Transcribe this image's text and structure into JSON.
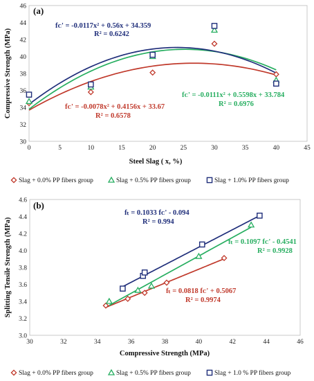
{
  "chart_data": [
    {
      "type": "scatter",
      "panel_label": "(a)",
      "xlabel": "Steel Slag ( x, %)",
      "ylabel": "Compressive Strength (MPa)",
      "xlim": [
        0,
        45
      ],
      "ylim": [
        30,
        46
      ],
      "xticks": [
        0,
        5,
        10,
        15,
        20,
        25,
        30,
        35,
        40,
        45
      ],
      "yticks": [
        30,
        32,
        34,
        36,
        38,
        40,
        42,
        44,
        46
      ],
      "grid": false,
      "legend_position": "bottom",
      "series": [
        {
          "name": "Slag + 0.0% PP fibers group",
          "color": "#c0392b",
          "marker": "diamond",
          "x": [
            0,
            10,
            20,
            30,
            40
          ],
          "y": [
            34.5,
            35.8,
            38.1,
            41.5,
            37.9
          ],
          "fit": {
            "degree": 2,
            "coef": [
              -0.0078,
              0.4156,
              33.67
            ]
          },
          "equation": "fᴄ' = -0.0078x² + 0.4156x + 33.67",
          "r2": "R² = 0.6578"
        },
        {
          "name": "Slag + 0.5% PP fibers group",
          "color": "#27ae60",
          "marker": "triangle",
          "x": [
            0,
            10,
            20,
            30,
            40
          ],
          "y": [
            34.7,
            36.4,
            40.0,
            43.1,
            37.2
          ],
          "fit": {
            "degree": 2,
            "coef": [
              -0.0111,
              0.5598,
              33.784
            ]
          },
          "equation": "fᴄ' = -0.0111x² + 0.5598x + 33.784",
          "r2": "R² = 0.6976"
        },
        {
          "name": "Slag + 1.0% PP fibers group",
          "color": "#1f2e7a",
          "marker": "square",
          "x": [
            0,
            10,
            20,
            30,
            40
          ],
          "y": [
            35.5,
            36.7,
            40.2,
            43.6,
            36.8
          ],
          "fit": {
            "degree": 2,
            "coef": [
              -0.0117,
              0.56,
              34.359
            ]
          },
          "equation": "fᴄ' = -0.0117x² + 0.56x + 34.359",
          "r2": "R² = 0.6242"
        }
      ]
    },
    {
      "type": "scatter",
      "panel_label": "(b)",
      "xlabel": "Compressive Strength (MPa)",
      "ylabel": "Splitting Tensile Strength (MPa)",
      "xlim": [
        30,
        46
      ],
      "ylim": [
        3.0,
        4.6
      ],
      "xticks": [
        30,
        32,
        34,
        36,
        38,
        40,
        42,
        44,
        46
      ],
      "yticks": [
        3.0,
        3.2,
        3.4,
        3.6,
        3.8,
        4.0,
        4.2,
        4.4,
        4.6
      ],
      "grid": false,
      "legend_position": "bottom",
      "series": [
        {
          "name": "Slag + 0.0% PP fibers group",
          "color": "#c0392b",
          "marker": "diamond",
          "x": [
            34.5,
            35.8,
            36.8,
            38.1,
            41.5
          ],
          "y": [
            3.35,
            3.43,
            3.5,
            3.62,
            3.91
          ],
          "fit": {
            "degree": 1,
            "coef": [
              0.0818,
              0.5067
            ]
          },
          "equation": "fₜ = 0.0818 fᴄ' + 0.5067",
          "r2": "R² = 0.9974"
        },
        {
          "name": "Slag + 0.5% PP fibers group",
          "color": "#27ae60",
          "marker": "triangle",
          "x": [
            34.7,
            36.4,
            37.2,
            40.0,
            43.1
          ],
          "y": [
            3.4,
            3.53,
            3.58,
            3.93,
            4.3
          ],
          "fit": {
            "degree": 1,
            "coef": [
              0.1097,
              -0.4541
            ]
          },
          "equation": "fₜ = 0.1097 fᴄ' - 0.4541",
          "r2": "R² = 0.9928"
        },
        {
          "name": "Slag + 1.0 % PP fibers group",
          "color": "#1f2e7a",
          "marker": "square",
          "x": [
            35.5,
            36.7,
            36.8,
            40.2,
            43.6
          ],
          "y": [
            3.55,
            3.7,
            3.74,
            4.07,
            4.41
          ],
          "fit": {
            "degree": 1,
            "coef": [
              0.1033,
              -0.094
            ]
          },
          "equation": "fₜ = 0.1033 fᴄ' - 0.094",
          "r2": "R² = 0.994"
        }
      ]
    }
  ]
}
